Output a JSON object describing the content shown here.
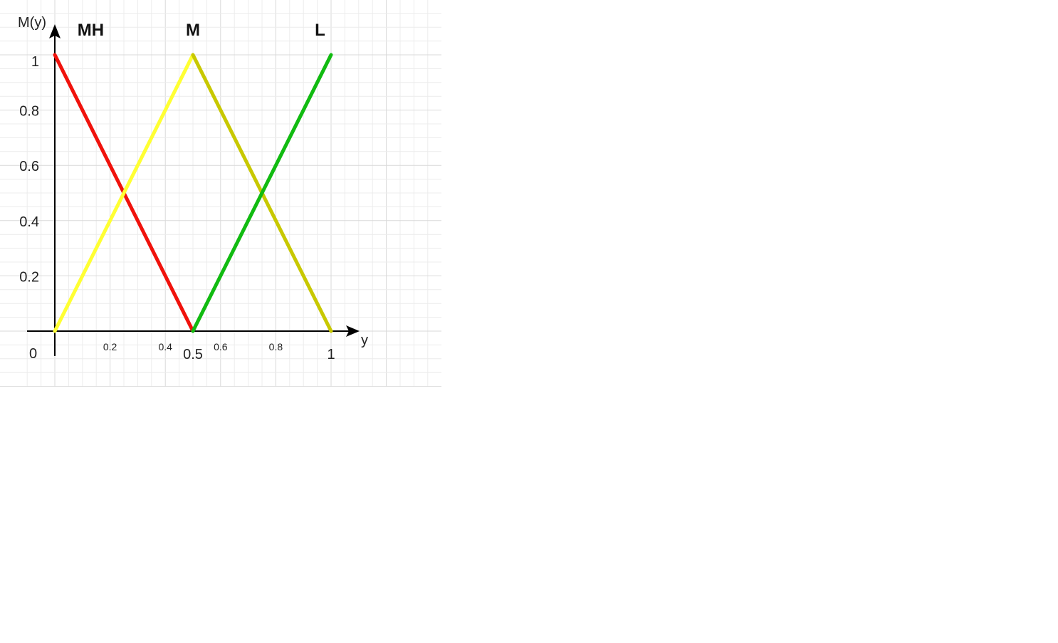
{
  "chart_data": {
    "type": "line",
    "title": "",
    "xlabel": "y",
    "ylabel": "M(y)",
    "xlim": [
      0,
      1
    ],
    "ylim": [
      0,
      1
    ],
    "grid": true,
    "legend": "top (labels above line peaks)",
    "origin_label": "0",
    "x_ticks": [
      {
        "value": 0.2,
        "label": "0.2",
        "size": "small"
      },
      {
        "value": 0.4,
        "label": "0.4",
        "size": "small"
      },
      {
        "value": 0.5,
        "label": "0.5",
        "size": "large"
      },
      {
        "value": 0.6,
        "label": "0.6",
        "size": "small"
      },
      {
        "value": 0.8,
        "label": "0.8",
        "size": "small"
      },
      {
        "value": 1.0,
        "label": "1",
        "size": "large"
      }
    ],
    "y_ticks": [
      {
        "value": 0.2,
        "label": "0.2"
      },
      {
        "value": 0.4,
        "label": "0.4"
      },
      {
        "value": 0.6,
        "label": "0.6"
      },
      {
        "value": 0.8,
        "label": "0.8"
      },
      {
        "value": 1.0,
        "label": "1"
      }
    ],
    "series": [
      {
        "name": "MH",
        "color": "#f0120c",
        "points": [
          [
            0,
            1
          ],
          [
            0.5,
            0
          ]
        ],
        "label_at": [
          0.13,
          1.07
        ]
      },
      {
        "name": "M",
        "color": "#ffff33",
        "points": [
          [
            0,
            0
          ],
          [
            0.5,
            1
          ]
        ],
        "label_at": [
          0.5,
          1.07
        ]
      },
      {
        "name": "",
        "color": "#c8c800",
        "points": [
          [
            0.5,
            1
          ],
          [
            1,
            0
          ]
        ]
      },
      {
        "name": "L",
        "color": "#11bb11",
        "points": [
          [
            0.5,
            0
          ],
          [
            1,
            1
          ]
        ],
        "label_at": [
          0.96,
          1.07
        ]
      }
    ]
  }
}
